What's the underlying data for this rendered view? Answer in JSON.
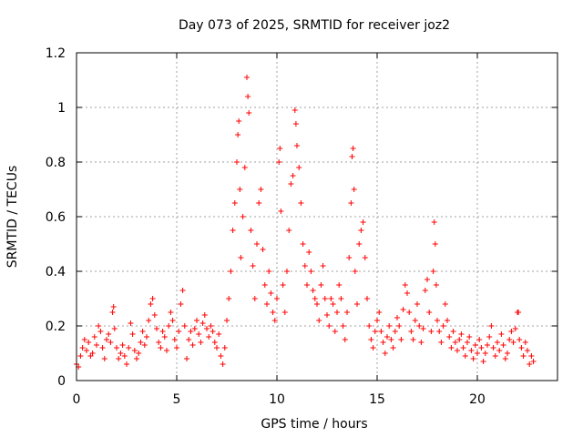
{
  "chart_data": {
    "type": "scatter",
    "title": "Day 073 of 2025, SRMTID for receiver joz2",
    "xlabel": "GPS time / hours",
    "ylabel": "SRMTID / TECUs",
    "xlim": [
      0,
      24
    ],
    "ylim": [
      0,
      1.2
    ],
    "xticks": [
      0,
      5,
      10,
      15,
      20
    ],
    "xtick_labels": [
      "0",
      "5",
      "10",
      "15",
      "20"
    ],
    "yticks": [
      0,
      0.2,
      0.4,
      0.6,
      0.8,
      1.0,
      1.2
    ],
    "ytick_labels": [
      "0",
      "0.2",
      "0.4",
      "0.6",
      "0.8",
      "1",
      "1.2"
    ],
    "grid": true,
    "marker": "+",
    "color": "#ff0000",
    "series": [
      {
        "name": "SRMTID",
        "points": [
          [
            0.0,
            0.06
          ],
          [
            0.1,
            0.05
          ],
          [
            0.2,
            0.09
          ],
          [
            0.3,
            0.12
          ],
          [
            0.4,
            0.15
          ],
          [
            0.5,
            0.11
          ],
          [
            0.6,
            0.14
          ],
          [
            0.7,
            0.09
          ],
          [
            0.8,
            0.1
          ],
          [
            0.9,
            0.16
          ],
          [
            1.0,
            0.13
          ],
          [
            1.1,
            0.2
          ],
          [
            1.2,
            0.18
          ],
          [
            1.3,
            0.12
          ],
          [
            1.4,
            0.08
          ],
          [
            1.5,
            0.15
          ],
          [
            1.6,
            0.17
          ],
          [
            1.7,
            0.14
          ],
          [
            1.8,
            0.25
          ],
          [
            1.85,
            0.27
          ],
          [
            1.9,
            0.19
          ],
          [
            2.0,
            0.12
          ],
          [
            2.1,
            0.08
          ],
          [
            2.2,
            0.1
          ],
          [
            2.3,
            0.13
          ],
          [
            2.4,
            0.09
          ],
          [
            2.5,
            0.06
          ],
          [
            2.6,
            0.12
          ],
          [
            2.7,
            0.21
          ],
          [
            2.8,
            0.17
          ],
          [
            2.9,
            0.11
          ],
          [
            3.0,
            0.08
          ],
          [
            3.1,
            0.1
          ],
          [
            3.2,
            0.14
          ],
          [
            3.3,
            0.18
          ],
          [
            3.4,
            0.13
          ],
          [
            3.5,
            0.16
          ],
          [
            3.6,
            0.22
          ],
          [
            3.7,
            0.28
          ],
          [
            3.8,
            0.3
          ],
          [
            3.9,
            0.24
          ],
          [
            4.0,
            0.19
          ],
          [
            4.1,
            0.14
          ],
          [
            4.2,
            0.12
          ],
          [
            4.3,
            0.18
          ],
          [
            4.4,
            0.16
          ],
          [
            4.5,
            0.11
          ],
          [
            4.6,
            0.2
          ],
          [
            4.7,
            0.25
          ],
          [
            4.8,
            0.22
          ],
          [
            4.9,
            0.15
          ],
          [
            5.0,
            0.12
          ],
          [
            5.1,
            0.18
          ],
          [
            5.2,
            0.28
          ],
          [
            5.3,
            0.33
          ],
          [
            5.4,
            0.2
          ],
          [
            5.5,
            0.08
          ],
          [
            5.6,
            0.15
          ],
          [
            5.7,
            0.18
          ],
          [
            5.8,
            0.13
          ],
          [
            5.9,
            0.19
          ],
          [
            6.0,
            0.22
          ],
          [
            6.1,
            0.17
          ],
          [
            6.2,
            0.14
          ],
          [
            6.3,
            0.21
          ],
          [
            6.4,
            0.24
          ],
          [
            6.5,
            0.19
          ],
          [
            6.6,
            0.16
          ],
          [
            6.7,
            0.2
          ],
          [
            6.8,
            0.18
          ],
          [
            6.9,
            0.14
          ],
          [
            7.0,
            0.12
          ],
          [
            7.1,
            0.17
          ],
          [
            7.2,
            0.09
          ],
          [
            7.3,
            0.06
          ],
          [
            7.4,
            0.12
          ],
          [
            7.5,
            0.22
          ],
          [
            7.6,
            0.3
          ],
          [
            7.7,
            0.4
          ],
          [
            7.8,
            0.55
          ],
          [
            7.9,
            0.65
          ],
          [
            8.0,
            0.8
          ],
          [
            8.05,
            0.9
          ],
          [
            8.1,
            0.95
          ],
          [
            8.15,
            0.7
          ],
          [
            8.2,
            0.45
          ],
          [
            8.3,
            0.6
          ],
          [
            8.4,
            0.78
          ],
          [
            8.5,
            1.11
          ],
          [
            8.55,
            1.04
          ],
          [
            8.6,
            0.98
          ],
          [
            8.7,
            0.55
          ],
          [
            8.8,
            0.42
          ],
          [
            8.9,
            0.3
          ],
          [
            9.0,
            0.5
          ],
          [
            9.1,
            0.65
          ],
          [
            9.2,
            0.7
          ],
          [
            9.3,
            0.48
          ],
          [
            9.4,
            0.35
          ],
          [
            9.5,
            0.28
          ],
          [
            9.6,
            0.4
          ],
          [
            9.7,
            0.32
          ],
          [
            9.8,
            0.25
          ],
          [
            9.9,
            0.22
          ],
          [
            10.0,
            0.3
          ],
          [
            10.1,
            0.8
          ],
          [
            10.15,
            0.85
          ],
          [
            10.2,
            0.62
          ],
          [
            10.3,
            0.35
          ],
          [
            10.4,
            0.25
          ],
          [
            10.5,
            0.4
          ],
          [
            10.6,
            0.55
          ],
          [
            10.7,
            0.72
          ],
          [
            10.8,
            0.75
          ],
          [
            10.9,
            0.99
          ],
          [
            10.95,
            0.94
          ],
          [
            11.0,
            0.86
          ],
          [
            11.1,
            0.78
          ],
          [
            11.2,
            0.65
          ],
          [
            11.3,
            0.5
          ],
          [
            11.4,
            0.42
          ],
          [
            11.5,
            0.35
          ],
          [
            11.6,
            0.47
          ],
          [
            11.7,
            0.4
          ],
          [
            11.8,
            0.33
          ],
          [
            11.9,
            0.3
          ],
          [
            12.0,
            0.28
          ],
          [
            12.1,
            0.22
          ],
          [
            12.2,
            0.35
          ],
          [
            12.3,
            0.42
          ],
          [
            12.4,
            0.3
          ],
          [
            12.5,
            0.24
          ],
          [
            12.6,
            0.2
          ],
          [
            12.7,
            0.3
          ],
          [
            12.8,
            0.28
          ],
          [
            12.9,
            0.18
          ],
          [
            13.0,
            0.25
          ],
          [
            13.1,
            0.35
          ],
          [
            13.2,
            0.3
          ],
          [
            13.3,
            0.2
          ],
          [
            13.4,
            0.15
          ],
          [
            13.5,
            0.25
          ],
          [
            13.6,
            0.45
          ],
          [
            13.7,
            0.65
          ],
          [
            13.75,
            0.82
          ],
          [
            13.8,
            0.85
          ],
          [
            13.85,
            0.7
          ],
          [
            13.9,
            0.4
          ],
          [
            14.0,
            0.28
          ],
          [
            14.1,
            0.5
          ],
          [
            14.2,
            0.55
          ],
          [
            14.3,
            0.58
          ],
          [
            14.4,
            0.45
          ],
          [
            14.5,
            0.3
          ],
          [
            14.6,
            0.2
          ],
          [
            14.7,
            0.15
          ],
          [
            14.8,
            0.12
          ],
          [
            14.9,
            0.18
          ],
          [
            15.0,
            0.22
          ],
          [
            15.1,
            0.25
          ],
          [
            15.2,
            0.18
          ],
          [
            15.3,
            0.14
          ],
          [
            15.4,
            0.1
          ],
          [
            15.5,
            0.16
          ],
          [
            15.6,
            0.2
          ],
          [
            15.7,
            0.15
          ],
          [
            15.8,
            0.12
          ],
          [
            15.9,
            0.18
          ],
          [
            16.0,
            0.23
          ],
          [
            16.1,
            0.2
          ],
          [
            16.2,
            0.15
          ],
          [
            16.3,
            0.26
          ],
          [
            16.4,
            0.35
          ],
          [
            16.5,
            0.32
          ],
          [
            16.6,
            0.25
          ],
          [
            16.7,
            0.18
          ],
          [
            16.8,
            0.15
          ],
          [
            16.9,
            0.22
          ],
          [
            17.0,
            0.28
          ],
          [
            17.1,
            0.2
          ],
          [
            17.2,
            0.14
          ],
          [
            17.3,
            0.19
          ],
          [
            17.4,
            0.33
          ],
          [
            17.5,
            0.37
          ],
          [
            17.6,
            0.25
          ],
          [
            17.7,
            0.18
          ],
          [
            17.8,
            0.4
          ],
          [
            17.85,
            0.58
          ],
          [
            17.9,
            0.5
          ],
          [
            17.95,
            0.35
          ],
          [
            18.0,
            0.22
          ],
          [
            18.1,
            0.18
          ],
          [
            18.2,
            0.14
          ],
          [
            18.3,
            0.2
          ],
          [
            18.4,
            0.28
          ],
          [
            18.5,
            0.22
          ],
          [
            18.6,
            0.16
          ],
          [
            18.7,
            0.12
          ],
          [
            18.8,
            0.18
          ],
          [
            18.9,
            0.14
          ],
          [
            19.0,
            0.11
          ],
          [
            19.1,
            0.15
          ],
          [
            19.2,
            0.17
          ],
          [
            19.3,
            0.12
          ],
          [
            19.4,
            0.09
          ],
          [
            19.5,
            0.14
          ],
          [
            19.6,
            0.16
          ],
          [
            19.7,
            0.11
          ],
          [
            19.8,
            0.08
          ],
          [
            19.9,
            0.13
          ],
          [
            20.0,
            0.1
          ],
          [
            20.1,
            0.15
          ],
          [
            20.2,
            0.12
          ],
          [
            20.3,
            0.07
          ],
          [
            20.4,
            0.1
          ],
          [
            20.5,
            0.13
          ],
          [
            20.6,
            0.16
          ],
          [
            20.7,
            0.2
          ],
          [
            20.8,
            0.12
          ],
          [
            20.9,
            0.09
          ],
          [
            21.0,
            0.14
          ],
          [
            21.1,
            0.11
          ],
          [
            21.2,
            0.17
          ],
          [
            21.3,
            0.13
          ],
          [
            21.4,
            0.08
          ],
          [
            21.5,
            0.1
          ],
          [
            21.6,
            0.15
          ],
          [
            21.7,
            0.18
          ],
          [
            21.8,
            0.14
          ],
          [
            21.9,
            0.19
          ],
          [
            22.0,
            0.25
          ],
          [
            22.05,
            0.25
          ],
          [
            22.1,
            0.15
          ],
          [
            22.2,
            0.12
          ],
          [
            22.3,
            0.09
          ],
          [
            22.4,
            0.14
          ],
          [
            22.5,
            0.11
          ],
          [
            22.6,
            0.06
          ],
          [
            22.7,
            0.09
          ],
          [
            22.8,
            0.07
          ]
        ]
      }
    ]
  }
}
